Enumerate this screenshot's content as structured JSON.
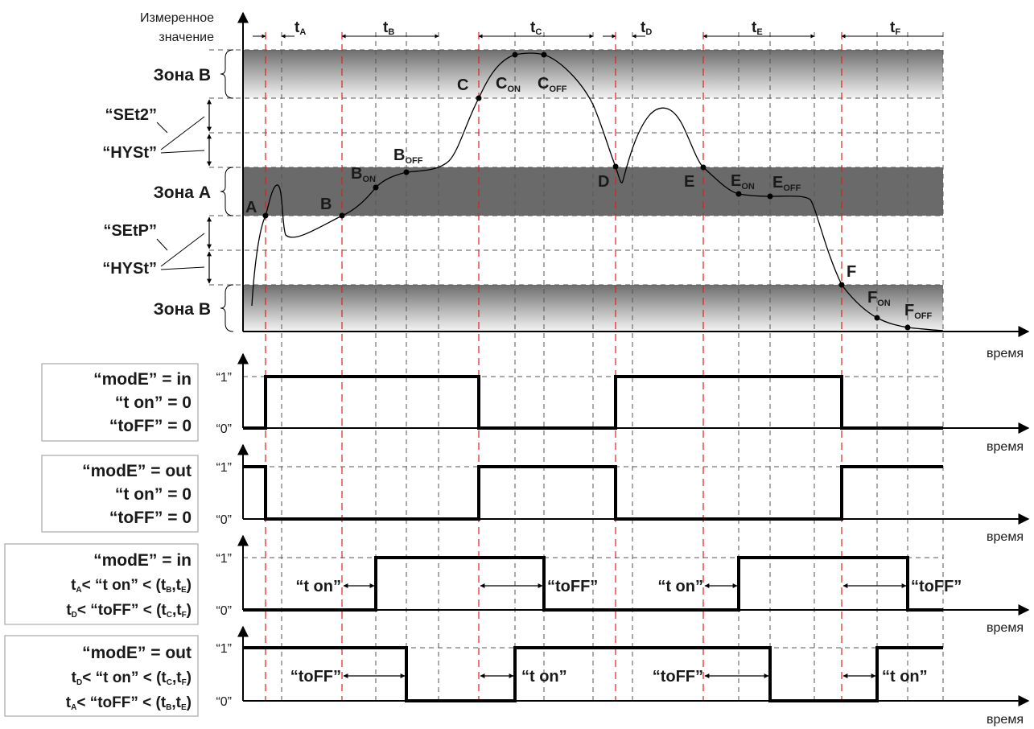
{
  "axis_top": {
    "line1": "Измеренное",
    "line2": "значение"
  },
  "time_label": "время",
  "intervals": [
    {
      "main": "t",
      "sub": "A"
    },
    {
      "main": "t",
      "sub": "B"
    },
    {
      "main": "t",
      "sub": "C"
    },
    {
      "main": "t",
      "sub": "D"
    },
    {
      "main": "t",
      "sub": "E"
    },
    {
      "main": "t",
      "sub": "F"
    }
  ],
  "zones": {
    "zone_b": "Зона B",
    "zone_a": "Зона A"
  },
  "params": {
    "set2": "“SEt2”",
    "hyst": "“HYSt”",
    "setp": "“SEtP”"
  },
  "points": {
    "A": "A",
    "B": "B",
    "C": "C",
    "D": "D",
    "E": "E",
    "F": "F",
    "on": "ON",
    "off": "OFF"
  },
  "levels": {
    "one": "“1”",
    "zero": "“0”"
  },
  "panels": [
    {
      "l1": "“modE” = in",
      "l2": "“t on” = 0",
      "l3": "“toFF” = 0"
    },
    {
      "l1": "“modE” = out",
      "l2": "“t on” = 0",
      "l3": "“toFF” = 0"
    },
    {
      "l1": "“modE” = in",
      "l2a": "t",
      "l2s": "A",
      "l2b": "< “t on” < (t",
      "l2s2": "B",
      "l2c": ",t",
      "l2s3": "E",
      "l2d": ")",
      "l3a": "t",
      "l3s": "D",
      "l3b": "< “toFF” < (t",
      "l3s2": "C",
      "l3c": ",t",
      "l3s3": "F",
      "l3d": ")"
    },
    {
      "l1": "“modE” = out",
      "l2a": "t",
      "l2s": "D",
      "l2b": "< “t on” < (t",
      "l2s2": "C",
      "l2c": ",t",
      "l2s3": "F",
      "l2d": ")",
      "l3a": "t",
      "l3s": "A",
      "l3b": "< “toFF” < (t",
      "l3s2": "B",
      "l3c": ",t",
      "l3s3": "E",
      "l3d": ")"
    }
  ],
  "timer_labels": {
    "ton": "“t on”",
    "toff": "“toFF”"
  },
  "colors": {
    "event_line": "#e0201c",
    "zone_dark": "#666666",
    "grid": "#555555"
  }
}
